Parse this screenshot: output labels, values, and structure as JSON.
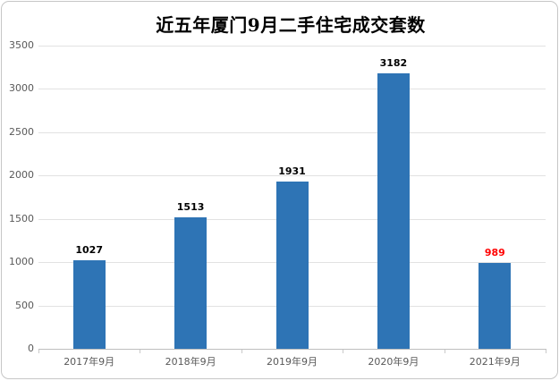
{
  "window": {
    "background": "#ffffff",
    "border_color": "#c6c6c6"
  },
  "chart_data": {
    "type": "bar",
    "title": "近五年厦门9月二手住宅成交套数",
    "categories": [
      "2017年9月",
      "2018年9月",
      "2019年9月",
      "2020年9月",
      "2021年9月"
    ],
    "values": [
      1027,
      1513,
      1931,
      3182,
      989
    ],
    "value_label_colors": [
      "#000000",
      "#000000",
      "#000000",
      "#000000",
      "#ff0000"
    ],
    "bar_color": "#2e74b5",
    "xlabel": "",
    "ylabel": "",
    "ylim": [
      0,
      3500
    ],
    "yticks": [
      0,
      500,
      1000,
      1500,
      2000,
      2500,
      3000,
      3500
    ],
    "grid": "horizontal",
    "legend": "none"
  }
}
